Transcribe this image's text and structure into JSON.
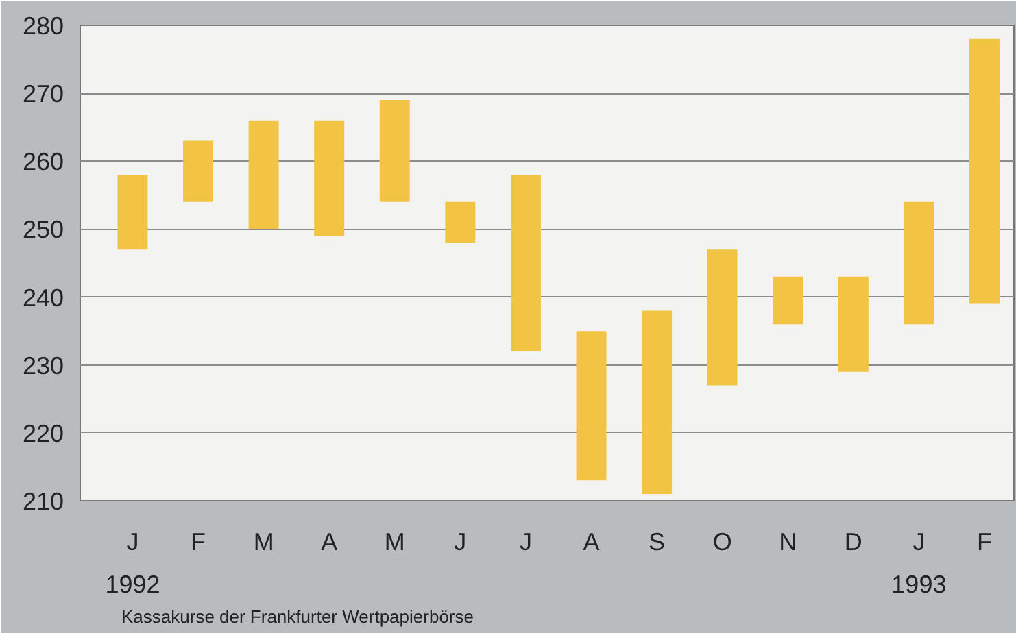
{
  "chart_data": {
    "type": "bar",
    "categories": [
      "J",
      "F",
      "M",
      "A",
      "M",
      "J",
      "J",
      "A",
      "S",
      "O",
      "N",
      "D",
      "J",
      "F"
    ],
    "base": [
      247,
      254,
      250,
      249,
      254,
      248,
      232,
      213,
      211,
      227,
      236,
      229,
      236,
      239
    ],
    "values": [
      11,
      9,
      16,
      17,
      15,
      6,
      26,
      22,
      27,
      20,
      7,
      14,
      18,
      39
    ],
    "color": "#f3c443",
    "ylim": [
      210,
      280
    ],
    "yticks": [
      210,
      220,
      230,
      240,
      250,
      260,
      270,
      280
    ],
    "grid": "y",
    "annotations": [
      "1992",
      "1993",
      "Kassakurse der Frankfurter Wertpapierbörse"
    ]
  }
}
